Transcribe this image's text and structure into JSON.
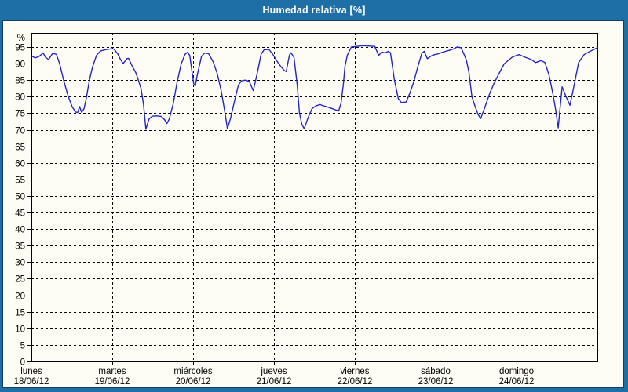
{
  "window": {
    "title": "Humedad relativa [%]"
  },
  "colors": {
    "frame_blue": "#1f6fa7",
    "panel_bg": "#fdfdf6",
    "panel_border": "#173c63",
    "grid": "#000000",
    "axis": "#000000",
    "line": "#2424cc",
    "title_text": "#ffffff",
    "label_text": "#000000"
  },
  "chart_data": {
    "type": "line",
    "title": "Humedad relativa [%]",
    "ylabel": "%",
    "ylim": [
      0,
      100
    ],
    "grid": "dashed",
    "legend": "none",
    "y_ticks": [
      0,
      5,
      10,
      15,
      20,
      25,
      30,
      35,
      40,
      45,
      50,
      55,
      60,
      65,
      70,
      75,
      80,
      85,
      90,
      95
    ],
    "x_axis": {
      "days": [
        {
          "name": "lunes",
          "date": "18/06/12"
        },
        {
          "name": "martes",
          "date": "19/06/12"
        },
        {
          "name": "miércoles",
          "date": "20/06/12"
        },
        {
          "name": "jueves",
          "date": "21/06/12"
        },
        {
          "name": "viernes",
          "date": "22/06/12"
        },
        {
          "name": "sábado",
          "date": "23/06/12"
        },
        {
          "name": "domingo",
          "date": "24/06/12"
        }
      ],
      "span_days": 7
    },
    "series": [
      {
        "name": "Humedad relativa",
        "color": "#2424cc",
        "points": [
          [
            0.0,
            92.3
          ],
          [
            0.048,
            91.7
          ],
          [
            0.097,
            92.2
          ],
          [
            0.145,
            93.2
          ],
          [
            0.175,
            91.9
          ],
          [
            0.213,
            91.2
          ],
          [
            0.262,
            93.1
          ],
          [
            0.31,
            92.8
          ],
          [
            0.349,
            90.0
          ],
          [
            0.398,
            85.0
          ],
          [
            0.456,
            80.0
          ],
          [
            0.504,
            77.0
          ],
          [
            0.543,
            75.4
          ],
          [
            0.572,
            75.2
          ],
          [
            0.596,
            77.0
          ],
          [
            0.62,
            75.3
          ],
          [
            0.65,
            76.3
          ],
          [
            0.679,
            79.5
          ],
          [
            0.717,
            85.0
          ],
          [
            0.756,
            89.0
          ],
          [
            0.805,
            92.5
          ],
          [
            0.853,
            93.8
          ],
          [
            0.911,
            94.2
          ],
          [
            1.0,
            94.5
          ],
          [
            1.019,
            94.4
          ],
          [
            1.067,
            93.0
          ],
          [
            1.096,
            91.5
          ],
          [
            1.134,
            90.0
          ],
          [
            1.183,
            91.5
          ],
          [
            1.203,
            91.6
          ],
          [
            1.241,
            89.5
          ],
          [
            1.29,
            87.3
          ],
          [
            1.328,
            84.6
          ],
          [
            1.357,
            82.3
          ],
          [
            1.387,
            77.5
          ],
          [
            1.416,
            70.2
          ],
          [
            1.454,
            73.2
          ],
          [
            1.493,
            74.1
          ],
          [
            1.551,
            74.2
          ],
          [
            1.61,
            74.0
          ],
          [
            1.648,
            73.0
          ],
          [
            1.677,
            71.9
          ],
          [
            1.706,
            73.3
          ],
          [
            1.755,
            78.0
          ],
          [
            1.803,
            84.5
          ],
          [
            1.852,
            89.9
          ],
          [
            1.9,
            92.8
          ],
          [
            1.929,
            93.4
          ],
          [
            1.958,
            92.5
          ],
          [
            2.007,
            84.0
          ],
          [
            2.026,
            83.2
          ],
          [
            2.055,
            87.0
          ],
          [
            2.104,
            92.2
          ],
          [
            2.143,
            93.2
          ],
          [
            2.191,
            93.0
          ],
          [
            2.249,
            90.5
          ],
          [
            2.298,
            87.0
          ],
          [
            2.346,
            82.0
          ],
          [
            2.395,
            75.0
          ],
          [
            2.424,
            70.3
          ],
          [
            2.463,
            73.5
          ],
          [
            2.511,
            78.5
          ],
          [
            2.56,
            83.5
          ],
          [
            2.598,
            84.8
          ],
          [
            2.647,
            85.0
          ],
          [
            2.695,
            84.6
          ],
          [
            2.744,
            81.8
          ],
          [
            2.792,
            87.0
          ],
          [
            2.841,
            92.8
          ],
          [
            2.879,
            94.2
          ],
          [
            2.938,
            94.3
          ],
          [
            2.986,
            92.8
          ],
          [
            3.035,
            90.8
          ],
          [
            3.083,
            89.2
          ],
          [
            3.132,
            87.8
          ],
          [
            3.151,
            87.6
          ],
          [
            3.19,
            92.5
          ],
          [
            3.209,
            93.3
          ],
          [
            3.248,
            91.9
          ],
          [
            3.287,
            83.5
          ],
          [
            3.316,
            75.0
          ],
          [
            3.345,
            71.7
          ],
          [
            3.374,
            70.3
          ],
          [
            3.422,
            73.7
          ],
          [
            3.471,
            76.4
          ],
          [
            3.519,
            77.2
          ],
          [
            3.568,
            77.6
          ],
          [
            3.616,
            77.2
          ],
          [
            3.684,
            76.7
          ],
          [
            3.752,
            76.1
          ],
          [
            3.8,
            75.7
          ],
          [
            3.829,
            78.0
          ],
          [
            3.859,
            84.0
          ],
          [
            3.878,
            89.1
          ],
          [
            3.907,
            92.5
          ],
          [
            3.956,
            95.0
          ],
          [
            4.024,
            95.2
          ],
          [
            4.092,
            95.4
          ],
          [
            4.169,
            95.3
          ],
          [
            4.247,
            95.2
          ],
          [
            4.295,
            92.5
          ],
          [
            4.334,
            93.5
          ],
          [
            4.373,
            93.2
          ],
          [
            4.412,
            93.7
          ],
          [
            4.441,
            93.3
          ],
          [
            4.489,
            85.1
          ],
          [
            4.538,
            79.4
          ],
          [
            4.577,
            78.2
          ],
          [
            4.635,
            78.4
          ],
          [
            4.683,
            81.2
          ],
          [
            4.732,
            84.7
          ],
          [
            4.78,
            89.1
          ],
          [
            4.829,
            93.1
          ],
          [
            4.858,
            93.7
          ],
          [
            4.897,
            91.5
          ],
          [
            4.945,
            92.3
          ],
          [
            4.984,
            92.7
          ],
          [
            5.023,
            92.9
          ],
          [
            5.071,
            93.3
          ],
          [
            5.12,
            93.7
          ],
          [
            5.168,
            94.0
          ],
          [
            5.217,
            94.4
          ],
          [
            5.265,
            95.0
          ],
          [
            5.314,
            94.8
          ],
          [
            5.352,
            92.7
          ],
          [
            5.381,
            91.0
          ],
          [
            5.411,
            87.5
          ],
          [
            5.449,
            80.0
          ],
          [
            5.488,
            77.0
          ],
          [
            5.527,
            74.5
          ],
          [
            5.556,
            73.4
          ],
          [
            5.604,
            76.5
          ],
          [
            5.672,
            81.2
          ],
          [
            5.721,
            84.0
          ],
          [
            5.769,
            86.3
          ],
          [
            5.847,
            89.9
          ],
          [
            5.944,
            91.9
          ],
          [
            5.992,
            92.4
          ],
          [
            6.031,
            92.7
          ],
          [
            6.109,
            91.9
          ],
          [
            6.177,
            91.3
          ],
          [
            6.235,
            90.3
          ],
          [
            6.303,
            90.9
          ],
          [
            6.351,
            90.3
          ],
          [
            6.4,
            86.7
          ],
          [
            6.448,
            81.2
          ],
          [
            6.487,
            75.5
          ],
          [
            6.516,
            70.6
          ],
          [
            6.564,
            83.0
          ],
          [
            6.613,
            80.0
          ],
          [
            6.661,
            77.4
          ],
          [
            6.719,
            84.3
          ],
          [
            6.768,
            90.3
          ],
          [
            6.836,
            92.7
          ],
          [
            6.884,
            93.4
          ],
          [
            6.952,
            94.2
          ],
          [
            7.0,
            94.8
          ]
        ]
      }
    ]
  }
}
